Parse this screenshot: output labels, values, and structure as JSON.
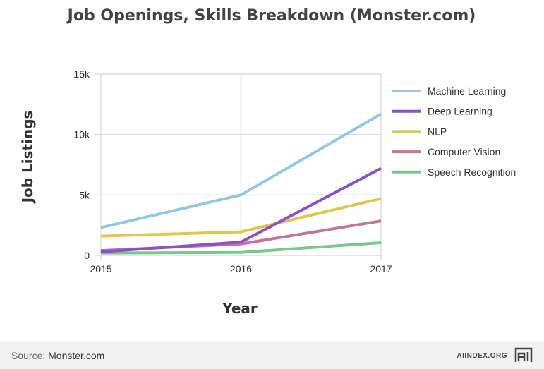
{
  "chart_data": {
    "type": "line",
    "title": "Job Openings, Skills Breakdown (Monster.com)",
    "xlabel": "Year",
    "ylabel": "Job Listings",
    "x": [
      "2015",
      "2016",
      "2017"
    ],
    "ylim": [
      0,
      15000
    ],
    "yticks": [
      0,
      5000,
      10000,
      15000
    ],
    "ytick_labels": [
      "0",
      "5k",
      "10k",
      "15k"
    ],
    "grid": true,
    "legend_position": "right",
    "series": [
      {
        "name": "Machine Learning",
        "color": "#8ec8e8",
        "values": [
          2300,
          5000,
          11700
        ]
      },
      {
        "name": "Deep Learning",
        "color": "#8e4fcf",
        "values": [
          300,
          1100,
          7200
        ]
      },
      {
        "name": "NLP",
        "color": "#e3c54c",
        "values": [
          1600,
          1950,
          4700
        ]
      },
      {
        "name": "Computer Vision",
        "color": "#c87396",
        "values": [
          400,
          950,
          2850
        ]
      },
      {
        "name": "Speech Recognition",
        "color": "#77c98a",
        "values": [
          200,
          250,
          1050
        ]
      }
    ]
  },
  "footer": {
    "source_label": "Source: ",
    "source_value": "Monster.com",
    "brand": "AIINDEX.ORG",
    "logo_icon": "ai-index-logo-icon"
  }
}
